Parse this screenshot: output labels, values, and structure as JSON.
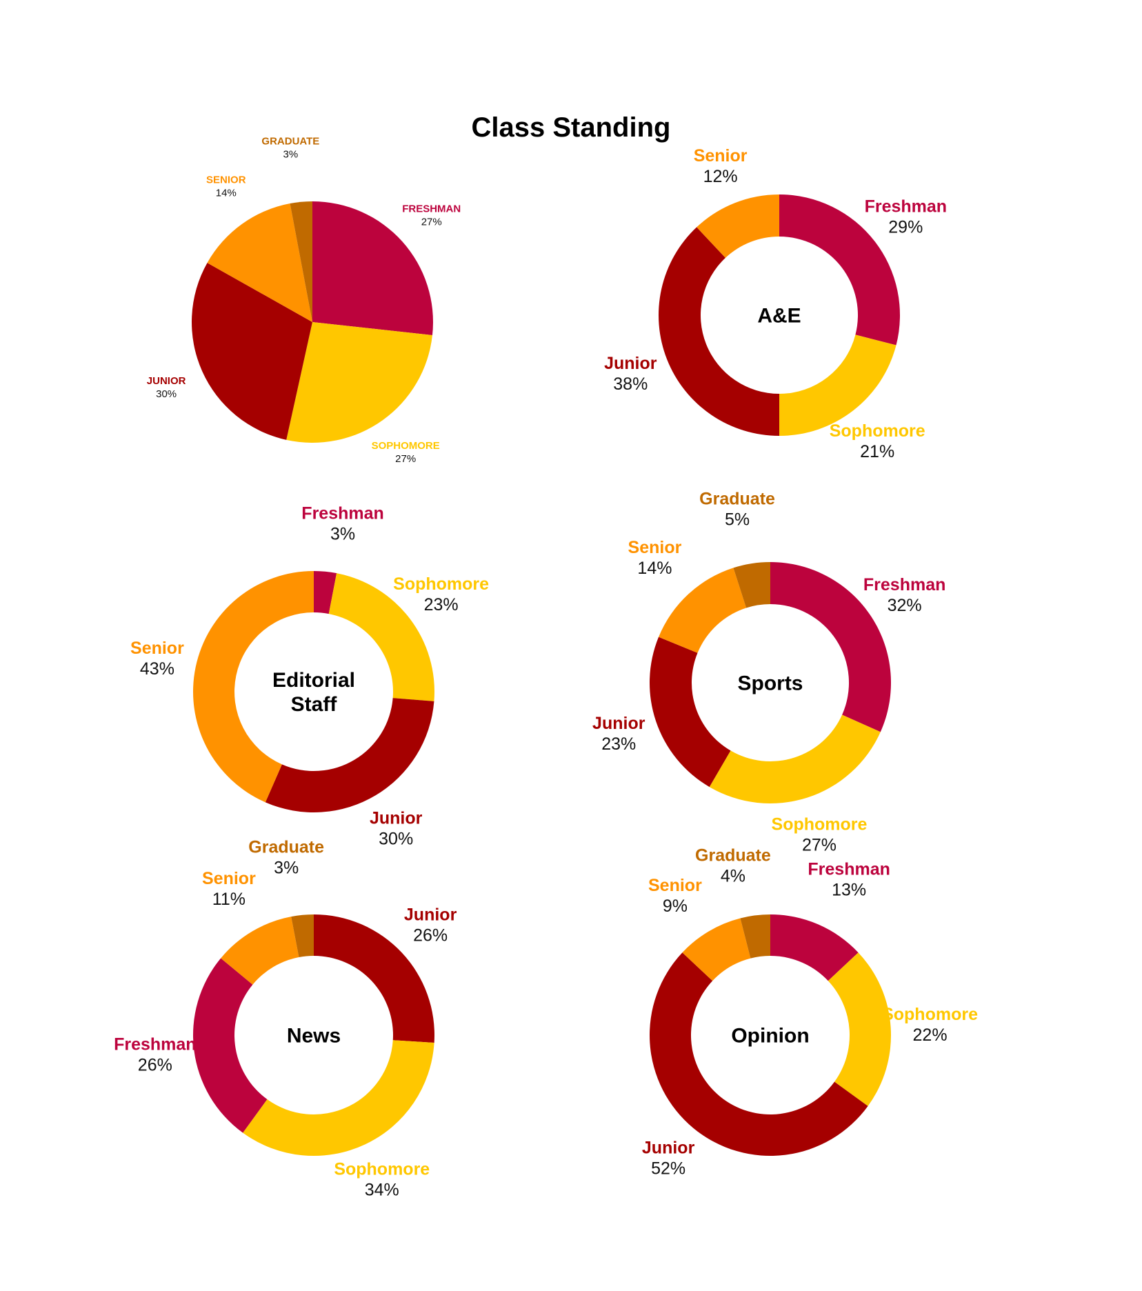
{
  "title": "Class Standing",
  "colors": {
    "Freshman": "#BC033D",
    "Sophomore": "#FFC700",
    "Junior": "#A50000",
    "Senior": "#FF9200",
    "Graduate": "#C06A00",
    "value_text": "#111111",
    "center_text": "#000000"
  },
  "chart_data": [
    {
      "type": "pie",
      "center_label": "",
      "label_case": "upper",
      "slices": [
        {
          "label": "Freshman",
          "value": 27
        },
        {
          "label": "Sophomore",
          "value": 27
        },
        {
          "label": "Junior",
          "value": 30
        },
        {
          "label": "Senior",
          "value": 14
        },
        {
          "label": "Graduate",
          "value": 3
        }
      ]
    },
    {
      "type": "pie",
      "center_label": "A&E",
      "slices": [
        {
          "label": "Freshman",
          "value": 29
        },
        {
          "label": "Sophomore",
          "value": 21
        },
        {
          "label": "Junior",
          "value": 38
        },
        {
          "label": "Senior",
          "value": 12
        }
      ]
    },
    {
      "type": "pie",
      "center_label": "Editorial\nStaff",
      "slices": [
        {
          "label": "Freshman",
          "value": 3
        },
        {
          "label": "Sophomore",
          "value": 23
        },
        {
          "label": "Junior",
          "value": 30
        },
        {
          "label": "Senior",
          "value": 43
        }
      ]
    },
    {
      "type": "pie",
      "center_label": "Sports",
      "slices": [
        {
          "label": "Freshman",
          "value": 32
        },
        {
          "label": "Sophomore",
          "value": 27
        },
        {
          "label": "Junior",
          "value": 23
        },
        {
          "label": "Senior",
          "value": 14
        },
        {
          "label": "Graduate",
          "value": 5
        }
      ]
    },
    {
      "type": "pie",
      "center_label": "News",
      "slices": [
        {
          "label": "Junior",
          "value": 26
        },
        {
          "label": "Sophomore",
          "value": 34
        },
        {
          "label": "Freshman",
          "value": 26
        },
        {
          "label": "Senior",
          "value": 11
        },
        {
          "label": "Graduate",
          "value": 3
        }
      ]
    },
    {
      "type": "pie",
      "center_label": "Opinion",
      "slices": [
        {
          "label": "Freshman",
          "value": 13
        },
        {
          "label": "Sophomore",
          "value": 22
        },
        {
          "label": "Junior",
          "value": 52
        },
        {
          "label": "Senior",
          "value": 9
        },
        {
          "label": "Graduate",
          "value": 4
        }
      ]
    }
  ]
}
